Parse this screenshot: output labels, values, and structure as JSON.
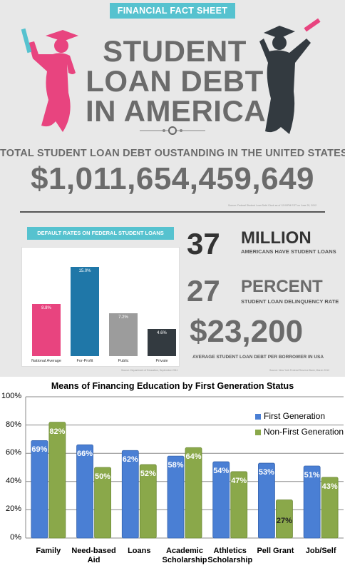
{
  "infographic": {
    "banner": "FINANCIAL FACT SHEET",
    "title_lines": [
      "STUDENT",
      "LOAN DEBT",
      "IN AMERICA"
    ],
    "total_label": "TOTAL STUDENT LOAN DEBT OUSTANDING IN THE UNITED STATES",
    "total_value": "$1,011,654,459,649",
    "total_source": "Source: Federal Student Loan Debt Clock as of 12:00PM EST on June 20, 2012",
    "default_banner": "DEFAULT RATES ON FEDERAL STUDENT LOANS",
    "default_source": "Source: Department of Education, September 2011",
    "stats": [
      {
        "big": "37",
        "unit": "MILLION",
        "caption": "AMERICANS HAVE STUDENT LOANS"
      },
      {
        "big": "27",
        "unit": "PERCENT",
        "caption": "STUDENT LOAN DELINQUENCY RATE"
      },
      {
        "big": "$23,200",
        "unit": "",
        "caption": "AVERAGE STUDENT LOAN DEBT PER BORROWER IN USA"
      }
    ],
    "stats_source": "Source: New York Federal Reserve Bank, March 2012",
    "colors": {
      "pink": "#e8447f",
      "dark": "#333a40",
      "teal": "#56c2cf"
    }
  },
  "chart_data": [
    {
      "type": "bar",
      "title": "DEFAULT RATES ON FEDERAL STUDENT LOANS",
      "categories": [
        "National Average",
        "For-Profit",
        "Public",
        "Private"
      ],
      "values": [
        8.8,
        15.0,
        7.2,
        4.6
      ],
      "labels": [
        "8.8%",
        "15.0%",
        "7.2%",
        "4.6%"
      ],
      "colors": [
        "#e8447f",
        "#1f77a8",
        "#9c9c9c",
        "#333a40"
      ],
      "ylim": [
        0,
        17
      ]
    },
    {
      "type": "bar",
      "title": "Means of Financing Education by First Generation Status",
      "categories": [
        "Family",
        "Need-based Aid",
        "Loans",
        "Academic Scholarship",
        "Athletics Scholarship",
        "Pell Grant",
        "Job/Self"
      ],
      "category_lines": [
        [
          "Family"
        ],
        [
          "Need-based",
          "Aid"
        ],
        [
          "Loans"
        ],
        [
          "Academic",
          "Scholarship"
        ],
        [
          "Athletics",
          "Scholarship"
        ],
        [
          "Pell Grant"
        ],
        [
          "Job/Self"
        ]
      ],
      "series": [
        {
          "name": "First Generation",
          "values": [
            69,
            66,
            62,
            58,
            54,
            53,
            51
          ],
          "color": "#4a7fd4"
        },
        {
          "name": "Non-First Generation",
          "values": [
            82,
            50,
            52,
            64,
            47,
            27,
            43
          ],
          "color": "#8aa84a"
        }
      ],
      "yticks": [
        "0%",
        "20%",
        "40%",
        "60%",
        "80%",
        "100%"
      ],
      "ylim": [
        0,
        100
      ],
      "grid": true,
      "legend": "top-right"
    }
  ]
}
